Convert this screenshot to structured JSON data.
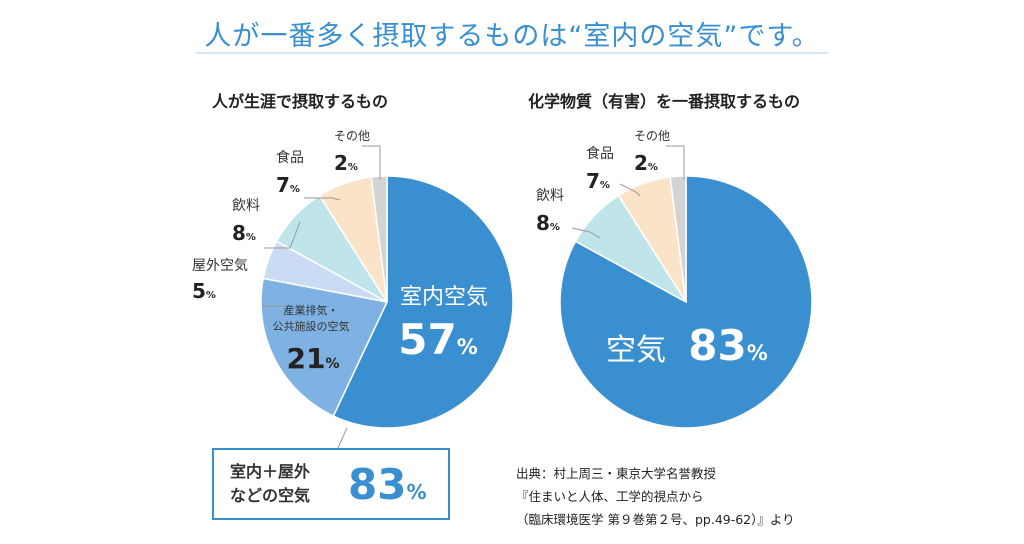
{
  "headline": "人が一番多く摂取するものは“室内の空気”です。",
  "callout": {
    "label_line1": "室内＋屋外",
    "label_line2": "などの空気",
    "value": "83",
    "unit": "%"
  },
  "source": [
    "出典：村上周三・東京大学名誉教授",
    "『住まいと人体、工学的視点から",
    "（臨床環境医学 第９巻第２号、pp.49-62）』より"
  ],
  "chart_data": [
    {
      "type": "pie",
      "title": "人が生涯で摂取するもの",
      "slices": [
        {
          "label": "室内空気",
          "value": 57,
          "color": "#3a8fd0"
        },
        {
          "label": "産業排気・公共施設の空気",
          "value": 21,
          "color": "#7fb2e3"
        },
        {
          "label": "屋外空気",
          "value": 5,
          "color": "#c9dcf3"
        },
        {
          "label": "飲料",
          "value": 8,
          "color": "#bfe4ea"
        },
        {
          "label": "食品",
          "value": 7,
          "color": "#fbe3c8"
        },
        {
          "label": "その他",
          "value": 2,
          "color": "#d3d3d3"
        }
      ]
    },
    {
      "type": "pie",
      "title": "化学物質（有害）を一番摂取するもの",
      "slices": [
        {
          "label": "空気",
          "value": 83,
          "color": "#3a8fd0"
        },
        {
          "label": "飲料",
          "value": 8,
          "color": "#bfe4ea"
        },
        {
          "label": "食品",
          "value": 7,
          "color": "#fbe3c8"
        },
        {
          "label": "その他",
          "value": 2,
          "color": "#d3d3d3"
        }
      ]
    }
  ]
}
